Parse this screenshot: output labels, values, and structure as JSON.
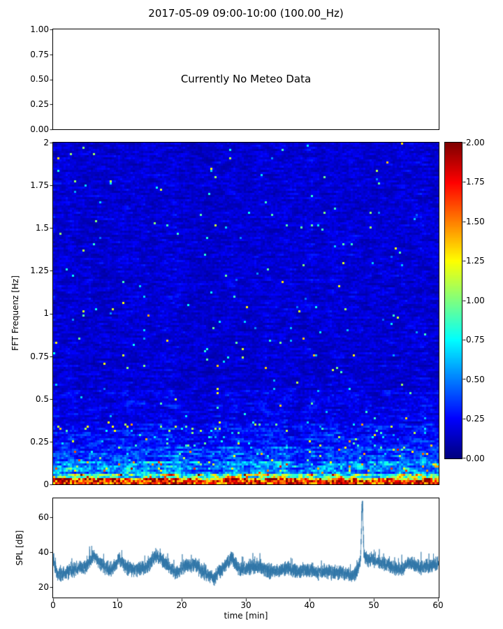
{
  "figure": {
    "title": "2017-05-09 09:00-10:00 (100.00_Hz)",
    "background": "#ffffff"
  },
  "chart_data": [
    {
      "id": "meteo-panel",
      "type": "line",
      "series": [],
      "annotation": "Currently No Meteo Data",
      "ylim": [
        0.0,
        1.0
      ],
      "yticks": [
        "1.00",
        "0.75",
        "0.50",
        "0.25",
        "0.00"
      ],
      "grid": false
    },
    {
      "id": "spectrogram",
      "type": "heatmap",
      "ylabel": "FFT Frequenz [Hz]",
      "xlim_minutes": [
        0,
        60
      ],
      "ylim_hz": [
        0,
        2
      ],
      "yticks": [
        "2",
        "1.75",
        "1.5",
        "1.25",
        "1",
        "0.75",
        "0.5",
        "0.25",
        "0"
      ],
      "colormap": "jet",
      "colorbar": {
        "range": [
          0.0,
          2.0
        ],
        "ticks": [
          "2.00",
          "1.75",
          "1.50",
          "1.25",
          "1.00",
          "0.75",
          "0.50",
          "0.25",
          "0.00"
        ]
      },
      "description": "Broadband low-amplitude blue noise (~0.1-0.4) above 0.3 Hz; energy rises below 0.3 Hz with cyan/green/yellow streaks, and a near-saturated red band (values near 2.0) below ~0.05 Hz",
      "frequency_bands": [
        {
          "f_min": 0.55,
          "f_max": 2.0,
          "base": 0.17
        },
        {
          "f_min": 0.35,
          "f_max": 0.55,
          "base": 0.21
        },
        {
          "f_min": 0.22,
          "f_max": 0.35,
          "base": 0.27
        },
        {
          "f_min": 0.13,
          "f_max": 0.22,
          "base": 0.38
        },
        {
          "f_min": 0.06,
          "f_max": 0.13,
          "base": 0.55
        },
        {
          "f_min": 0.025,
          "f_max": 0.06,
          "base": 0.95
        },
        {
          "f_min": 0.0,
          "f_max": 0.025,
          "base": 1.6
        }
      ],
      "speckle": {
        "prob_low": 0.035,
        "prob_high": 0.007
      }
    },
    {
      "id": "spl",
      "type": "line",
      "ylabel": "SPL [dB]",
      "xlabel": "time [min]",
      "xlim": [
        0,
        60
      ],
      "ylim": [
        14,
        71
      ],
      "yticks": [
        "60",
        "40",
        "20"
      ],
      "xticks": [
        "0",
        "10",
        "20",
        "30",
        "40",
        "50",
        "60"
      ],
      "line_color": "#2f76a8",
      "noise_amplitude_db": 4.5,
      "spike": {
        "time_min": 48.1,
        "peak_db": 68
      },
      "baseline": {
        "x": [
          0,
          0.7,
          2,
          3.5,
          5,
          6.3,
          7.5,
          9,
          10.3,
          11.5,
          13,
          14.5,
          16,
          17.5,
          19,
          20.5,
          22,
          23.5,
          25,
          26.5,
          27.8,
          29,
          30.5,
          32,
          33.5,
          35,
          36.5,
          38,
          39.5,
          41,
          42.5,
          44,
          45.5,
          46.8,
          48.1,
          49.5,
          51,
          52.5,
          54,
          55.5,
          57,
          58.5,
          60
        ],
        "y": [
          36,
          27,
          28,
          30,
          31,
          38,
          33,
          29,
          36,
          31,
          30,
          31,
          38,
          34,
          28,
          32,
          33,
          28,
          25,
          31,
          37,
          30,
          31,
          32,
          29,
          29,
          31,
          29,
          30,
          28,
          29,
          28,
          28,
          26,
          30,
          36,
          34,
          32,
          30,
          34,
          31,
          32,
          33
        ]
      }
    }
  ]
}
